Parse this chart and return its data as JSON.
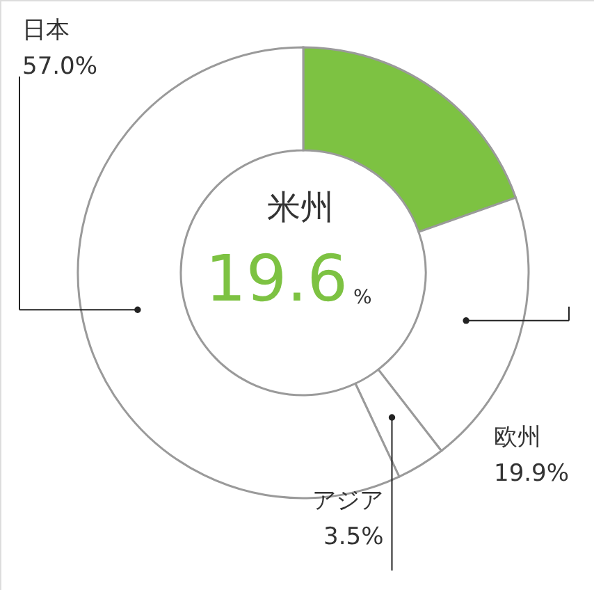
{
  "chart_data": {
    "type": "donut",
    "categories": [
      "米州",
      "欧州",
      "アジア",
      "日本"
    ],
    "values": [
      19.6,
      19.9,
      3.5,
      57.0
    ],
    "value_labels": [
      "19.6%",
      "19.9%",
      "3.5%",
      "57.0%"
    ],
    "colors": [
      "#7dc242",
      "#ffffff",
      "#ffffff",
      "#ffffff"
    ]
  }
}
